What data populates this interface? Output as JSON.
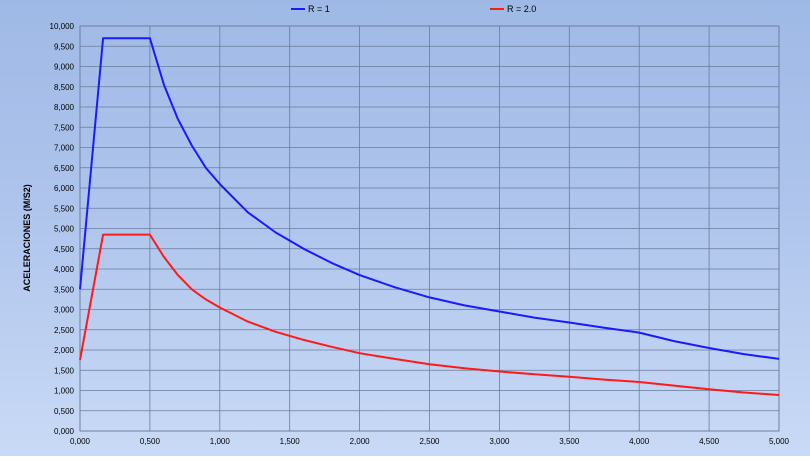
{
  "chart_data": {
    "type": "line",
    "title": "",
    "xlabel": "",
    "ylabel": "ACELERACIONES (M/S2)",
    "xlim": [
      0,
      5
    ],
    "ylim": [
      0,
      10
    ],
    "x_ticks": [
      "0,000",
      "0,500",
      "1,000",
      "1,500",
      "2,000",
      "2,500",
      "3,000",
      "3,500",
      "4,000",
      "4,500",
      "5,000"
    ],
    "y_ticks": [
      "0,000",
      "0,500",
      "1,000",
      "1,500",
      "2,000",
      "2,500",
      "3,000",
      "3,500",
      "4,000",
      "4,500",
      "5,000",
      "5,500",
      "6,000",
      "6,500",
      "7,000",
      "7,500",
      "8,000",
      "8,500",
      "9,000",
      "9,500",
      "10,000"
    ],
    "grid": true,
    "legend_position": "top",
    "x": [
      0,
      0.165,
      0.5,
      0.6,
      0.7,
      0.8,
      0.9,
      1.0,
      1.2,
      1.4,
      1.6,
      1.8,
      2.0,
      2.25,
      2.5,
      2.75,
      3.0,
      3.25,
      3.5,
      3.75,
      4.0,
      4.25,
      4.5,
      4.75,
      5.0
    ],
    "series": [
      {
        "name": "R = 1",
        "color": "#1a1aff",
        "values": [
          3.5,
          9.7,
          9.7,
          8.55,
          7.7,
          7.05,
          6.5,
          6.1,
          5.4,
          4.9,
          4.5,
          4.15,
          3.85,
          3.55,
          3.3,
          3.1,
          2.95,
          2.8,
          2.68,
          2.55,
          2.43,
          2.22,
          2.05,
          1.9,
          1.78
        ]
      },
      {
        "name": "R = 2.0",
        "color": "#ff1a1a",
        "values": [
          1.75,
          4.85,
          4.85,
          4.3,
          3.85,
          3.5,
          3.25,
          3.05,
          2.7,
          2.45,
          2.25,
          2.08,
          1.92,
          1.78,
          1.65,
          1.55,
          1.47,
          1.4,
          1.34,
          1.27,
          1.21,
          1.12,
          1.03,
          0.95,
          0.89
        ]
      }
    ]
  }
}
